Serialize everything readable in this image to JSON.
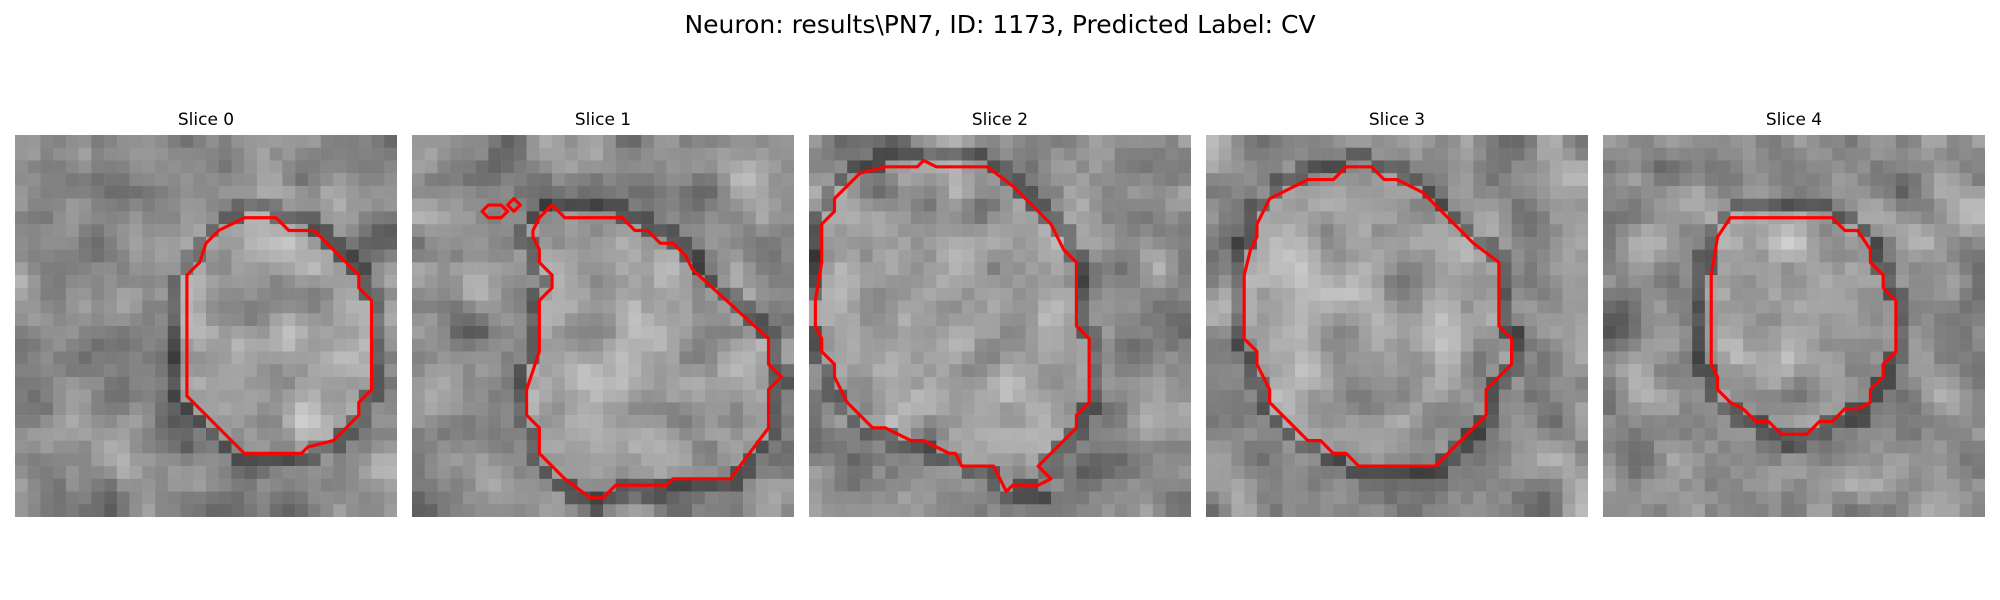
{
  "figure": {
    "title": "Neuron: results\\PN7, ID: 1173, Predicted Label: CV"
  },
  "contour_color": "#ff0000",
  "image_style": "grayscale",
  "panels": [
    {
      "title": "Slice 0"
    },
    {
      "title": "Slice 1"
    },
    {
      "title": "Slice 2"
    },
    {
      "title": "Slice 3"
    },
    {
      "title": "Slice 4"
    }
  ]
}
